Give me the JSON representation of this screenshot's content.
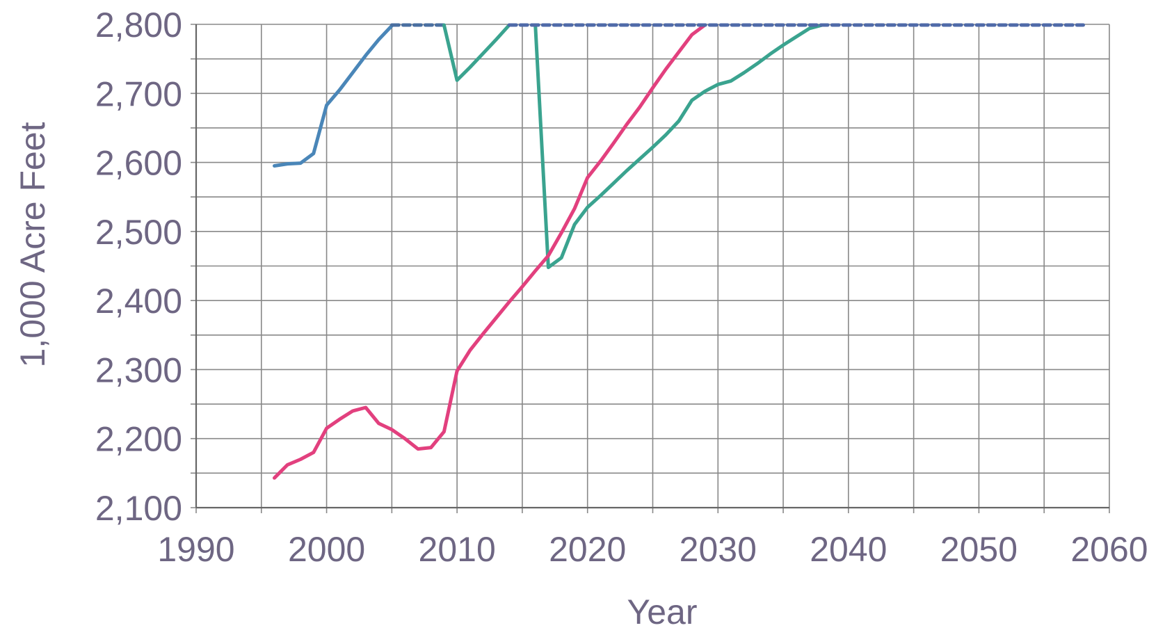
{
  "chart_data": {
    "type": "line",
    "xlabel": "Year",
    "ylabel": "1,000 Acre Feet",
    "xlim": [
      1990,
      2060
    ],
    "ylim": [
      2100,
      2800
    ],
    "x_ticks": [
      1990,
      2000,
      2010,
      2020,
      2030,
      2040,
      2050,
      2060
    ],
    "x_tick_labels": [
      "1990",
      "2000",
      "2010",
      "2020",
      "2030",
      "2040",
      "2050",
      "2060"
    ],
    "y_ticks": [
      2100,
      2200,
      2300,
      2400,
      2500,
      2600,
      2700,
      2800
    ],
    "y_tick_labels": [
      "2,100",
      "2,200",
      "2,300",
      "2,400",
      "2,500",
      "2,600",
      "2,700",
      "2,800"
    ],
    "grid": true,
    "series": [
      {
        "color": "#4a86b8",
        "dash": "0",
        "x": [
          1996,
          1997,
          1998,
          1999,
          2000,
          2001,
          2002,
          2003,
          2004,
          2005
        ],
        "y": [
          2595,
          2598,
          2599,
          2613,
          2683,
          2705,
          2730,
          2755,
          2778,
          2798
        ]
      },
      {
        "color": "#4a6fa0",
        "dash": "10 6",
        "x": [
          2005,
          2009
        ],
        "y": [
          2799,
          2799
        ]
      },
      {
        "color": "#3aa38f",
        "dash": "0",
        "x": [
          2009,
          2010,
          2011,
          2012,
          2013,
          2014
        ],
        "y": [
          2799,
          2719,
          2738,
          2758,
          2778,
          2799
        ]
      },
      {
        "color": "#3aa38f",
        "dash": "0",
        "x": [
          2016,
          2017,
          2018,
          2019,
          2020,
          2021,
          2022,
          2023,
          2024,
          2025,
          2026,
          2027,
          2028,
          2029,
          2030,
          2031,
          2032,
          2033,
          2034,
          2035,
          2036,
          2037,
          2038
        ],
        "y": [
          2799,
          2448,
          2462,
          2510,
          2535,
          2552,
          2570,
          2588,
          2605,
          2622,
          2640,
          2660,
          2690,
          2703,
          2713,
          2718,
          2730,
          2743,
          2757,
          2770,
          2782,
          2794,
          2799
        ]
      },
      {
        "color": "#e2407e",
        "dash": "0",
        "x": [
          1996,
          1997,
          1998,
          1999,
          2000,
          2001,
          2002,
          2003,
          2004,
          2005,
          2006,
          2007,
          2008,
          2009,
          2010,
          2011,
          2012,
          2013,
          2014,
          2015,
          2016,
          2017,
          2018,
          2019,
          2020,
          2021,
          2022,
          2023,
          2024,
          2025,
          2026,
          2027,
          2028,
          2029
        ],
        "y": [
          2143,
          2162,
          2170,
          2180,
          2215,
          2228,
          2240,
          2245,
          2222,
          2213,
          2200,
          2185,
          2187,
          2210,
          2298,
          2328,
          2352,
          2375,
          2398,
          2420,
          2443,
          2465,
          2498,
          2533,
          2578,
          2602,
          2628,
          2655,
          2680,
          2708,
          2735,
          2760,
          2785,
          2799
        ]
      },
      {
        "color": "#4f6aa8",
        "dash": "10 6",
        "x": [
          2014,
          2058
        ],
        "y": [
          2799,
          2799
        ]
      }
    ]
  }
}
